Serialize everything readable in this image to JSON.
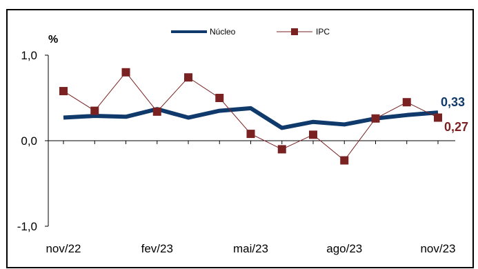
{
  "chart_data": {
    "type": "line",
    "unit_label": "%",
    "x": [
      "nov/22",
      "dez/22",
      "jan/23",
      "fev/23",
      "mar/23",
      "abr/23",
      "mai/23",
      "jun/23",
      "jul/23",
      "ago/23",
      "set/23",
      "out/23",
      "nov/23"
    ],
    "x_tick_labels": [
      "nov/22",
      "fev/23",
      "mai/23",
      "ago/23",
      "nov/23"
    ],
    "y_tick_labels": [
      "1,0",
      "0,0",
      "-1,0"
    ],
    "ylim": [
      -1.0,
      1.0
    ],
    "grid": false,
    "legend_position": "top-center",
    "series": [
      {
        "name": "Núcleo",
        "color": "#0f3a6b",
        "values": [
          0.27,
          0.29,
          0.28,
          0.37,
          0.27,
          0.35,
          0.38,
          0.15,
          0.22,
          0.19,
          0.26,
          0.3,
          0.33
        ],
        "end_label": "0,33"
      },
      {
        "name": "IPC",
        "color": "#7a2222",
        "values": [
          0.58,
          0.35,
          0.8,
          0.34,
          0.74,
          0.5,
          0.08,
          -0.1,
          0.07,
          -0.23,
          0.26,
          0.45,
          0.27
        ],
        "end_label": "0,27"
      }
    ]
  }
}
